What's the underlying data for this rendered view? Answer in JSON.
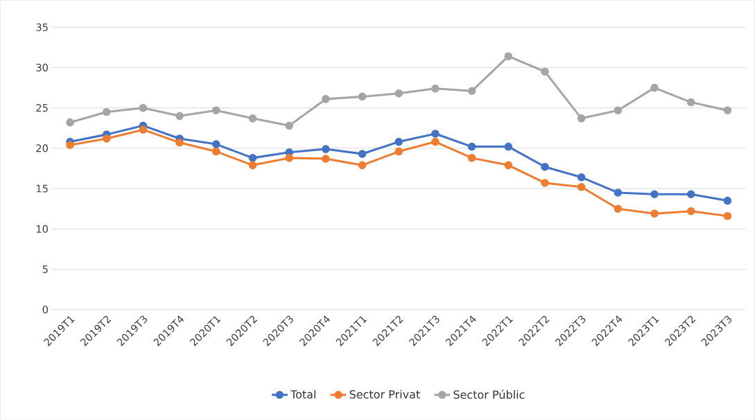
{
  "chart_data": {
    "type": "line",
    "categories": [
      "2019T1",
      "2019T2",
      "2019T3",
      "2019T4",
      "2020T1",
      "2020T2",
      "2020T3",
      "2020T4",
      "2021T1",
      "2021T2",
      "2021T3",
      "2021T4",
      "2022T1",
      "2022T2",
      "2022T3",
      "2022T4",
      "2023T1",
      "2023T2",
      "2023T3"
    ],
    "series": [
      {
        "name": "Total",
        "color": "#4472c4",
        "values": [
          20.8,
          21.7,
          22.8,
          21.2,
          20.5,
          18.8,
          19.5,
          19.9,
          19.3,
          20.8,
          21.8,
          20.2,
          20.2,
          17.7,
          16.4,
          14.5,
          14.3,
          14.3,
          13.5
        ]
      },
      {
        "name": "Sector Privat",
        "color": "#ed7d31",
        "values": [
          20.4,
          21.2,
          22.3,
          20.7,
          19.6,
          17.9,
          18.8,
          18.7,
          17.9,
          19.6,
          20.8,
          18.8,
          17.9,
          15.7,
          15.2,
          12.5,
          11.9,
          12.2,
          11.6
        ]
      },
      {
        "name": "Sector Públic",
        "color": "#a5a5a5",
        "values": [
          23.2,
          24.5,
          25.0,
          24.0,
          24.7,
          23.7,
          22.8,
          26.1,
          26.4,
          26.8,
          27.4,
          27.1,
          31.4,
          29.5,
          23.7,
          24.7,
          27.5,
          25.7,
          24.7
        ]
      }
    ],
    "ylim": [
      0,
      35
    ],
    "yticks": [
      0,
      5,
      10,
      15,
      20,
      25,
      30,
      35
    ],
    "grid": "y",
    "legend": "bottom",
    "marker": "circle"
  }
}
